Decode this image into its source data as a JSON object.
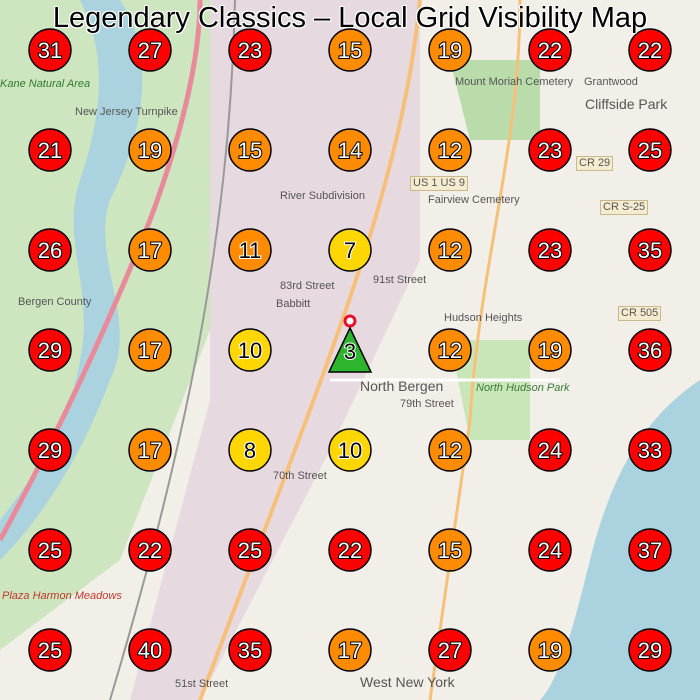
{
  "title": "Legendary Classics – Local Grid Visibility Map",
  "colors": {
    "high": "#ff0000",
    "mid": "#ff8c00",
    "low": "#ffd700",
    "best": "#2db52d"
  },
  "grid": [
    [
      31,
      27,
      23,
      15,
      19,
      22,
      22
    ],
    [
      21,
      19,
      15,
      14,
      12,
      23,
      25
    ],
    [
      26,
      17,
      11,
      7,
      12,
      23,
      35
    ],
    [
      29,
      17,
      10,
      3,
      12,
      19,
      36
    ],
    [
      29,
      17,
      8,
      10,
      12,
      24,
      33
    ],
    [
      25,
      22,
      25,
      22,
      15,
      24,
      37
    ],
    [
      25,
      40,
      35,
      17,
      27,
      19,
      29
    ]
  ],
  "best_cell": {
    "row": 3,
    "col": 3,
    "marker": "triangle"
  },
  "map_labels": [
    "Bergen County",
    "Fairview Cemetery",
    "Mount Moriah Cemetery",
    "Cliffside Park",
    "Grantwood",
    "North Hudson Park",
    "Hudson Heights",
    "North Bergen",
    "79th Street",
    "70th Street",
    "83rd Street",
    "Babbitt",
    "91st Street",
    "West New York",
    "US 1 US 9",
    "CR 29",
    "CR 505",
    "CR S-25",
    "51st Street",
    "Plaza Harmon Meadows",
    "River Subdivision",
    "New Jersey Turnpike",
    "Kane Natural Area"
  ]
}
